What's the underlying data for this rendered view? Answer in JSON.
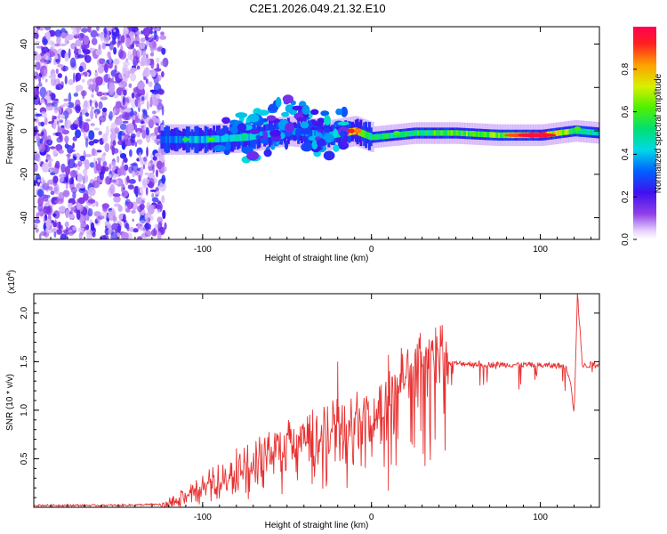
{
  "title": "C2E1.2026.049.21.32.E10",
  "chart_data": [
    {
      "type": "heatmap",
      "xlabel": "Height of straight line (km)",
      "ylabel": "Frequency (Hz)",
      "xlim": [
        -200,
        135
      ],
      "ylim": [
        -50,
        48
      ],
      "xticks": [
        -100,
        0,
        100
      ],
      "xtick_labels": [
        "-100",
        "0",
        "100"
      ],
      "yticks": [
        -40,
        -20,
        0,
        20,
        40
      ],
      "ytick_labels": [
        "-40",
        "-20",
        "0",
        "20",
        "40"
      ],
      "colorbar": {
        "label": "Normalized spectral amplitude",
        "range": [
          0.0,
          1.0
        ],
        "ticks": [
          0.0,
          0.2,
          0.4,
          0.6,
          0.8
        ],
        "tick_labels": [
          "0.0",
          "0.2",
          "0.4",
          "0.6",
          "0.8"
        ]
      },
      "noise_region_x": [
        -200,
        -122
      ],
      "signal_ridge": [
        {
          "x": -125,
          "f": -4,
          "amp": 0.35
        },
        {
          "x": -100,
          "f": -4,
          "amp": 0.45
        },
        {
          "x": -75,
          "f": -3,
          "amp": 0.5
        },
        {
          "x": -50,
          "f": 0,
          "amp": 0.35
        },
        {
          "x": -25,
          "f": -2,
          "amp": 0.4
        },
        {
          "x": -10,
          "f": 0,
          "amp": 0.9
        },
        {
          "x": 0,
          "f": -3,
          "amp": 0.55
        },
        {
          "x": 25,
          "f": -1,
          "amp": 0.6
        },
        {
          "x": 50,
          "f": -1,
          "amp": 0.65
        },
        {
          "x": 75,
          "f": -2,
          "amp": 0.7
        },
        {
          "x": 100,
          "f": -2,
          "amp": 0.95
        },
        {
          "x": 120,
          "f": 0,
          "amp": 0.6
        },
        {
          "x": 135,
          "f": -1,
          "amp": 0.5
        }
      ]
    },
    {
      "type": "line",
      "xlabel": "Height of straight line (km)",
      "ylabel": "SNR (10 * v/v)",
      "scale_label": "(x10",
      "scale_exp": "4",
      "scale_suffix": ")",
      "xlim": [
        -200,
        135
      ],
      "ylim": [
        0,
        2.2
      ],
      "xticks": [
        -100,
        0,
        100
      ],
      "xtick_labels": [
        "-100",
        "0",
        "100"
      ],
      "yticks": [
        0.5,
        1.0,
        1.5,
        2.0
      ],
      "ytick_labels": [
        "0.5",
        "1.0",
        "1.5",
        "2.0"
      ],
      "color": "#e83030",
      "series": [
        {
          "name": "SNR",
          "x": [
            -200,
            -150,
            -125,
            -110,
            -100,
            -90,
            -80,
            -70,
            -60,
            -50,
            -40,
            -30,
            -20,
            -15,
            -10,
            -5,
            0,
            5,
            10,
            15,
            20,
            30,
            40,
            50,
            60,
            70,
            80,
            90,
            100,
            110,
            115,
            118,
            120,
            122,
            125,
            130,
            135
          ],
          "y": [
            0.02,
            0.02,
            0.03,
            0.12,
            0.18,
            0.2,
            0.28,
            0.35,
            0.45,
            0.5,
            0.6,
            0.62,
            0.75,
            0.72,
            0.78,
            0.9,
            0.72,
            0.95,
            1.1,
            1.2,
            1.3,
            1.42,
            1.48,
            1.48,
            1.48,
            1.47,
            1.47,
            1.47,
            1.46,
            1.46,
            1.45,
            1.3,
            0.95,
            2.2,
            1.45,
            1.47,
            1.48
          ]
        }
      ],
      "spikes": [
        {
          "x": -20,
          "y": 1.5
        },
        {
          "x": 10,
          "y": 1.57
        },
        {
          "x": 122,
          "y": 2.2
        }
      ]
    }
  ]
}
